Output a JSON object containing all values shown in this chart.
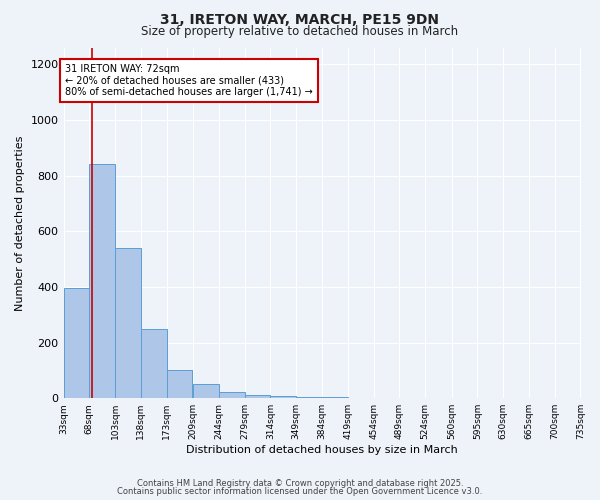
{
  "title1": "31, IRETON WAY, MARCH, PE15 9DN",
  "title2": "Size of property relative to detached houses in March",
  "xlabel": "Distribution of detached houses by size in March",
  "ylabel": "Number of detached properties",
  "bar_edges": [
    33,
    68,
    103,
    138,
    173,
    209,
    244,
    279,
    314,
    349,
    384,
    419,
    454,
    489,
    524,
    560,
    595,
    630,
    665,
    700,
    735
  ],
  "bar_heights": [
    395,
    840,
    540,
    248,
    100,
    50,
    22,
    13,
    8,
    5,
    3,
    0,
    0,
    0,
    0,
    0,
    0,
    0,
    0,
    0
  ],
  "bar_color": "#aec6e8",
  "bar_edge_color": "#5a9fd4",
  "red_line_x": 72,
  "annotation_text": "31 IRETON WAY: 72sqm\n← 20% of detached houses are smaller (433)\n80% of semi-detached houses are larger (1,741) →",
  "annotation_box_color": "#ffffff",
  "annotation_box_edge": "#cc0000",
  "ylim": [
    0,
    1260
  ],
  "yticks": [
    0,
    200,
    400,
    600,
    800,
    1000,
    1200
  ],
  "background_color": "#eef2f9",
  "grid_color": "#ffffff",
  "footer1": "Contains HM Land Registry data © Crown copyright and database right 2025.",
  "footer2": "Contains public sector information licensed under the Open Government Licence v3.0."
}
